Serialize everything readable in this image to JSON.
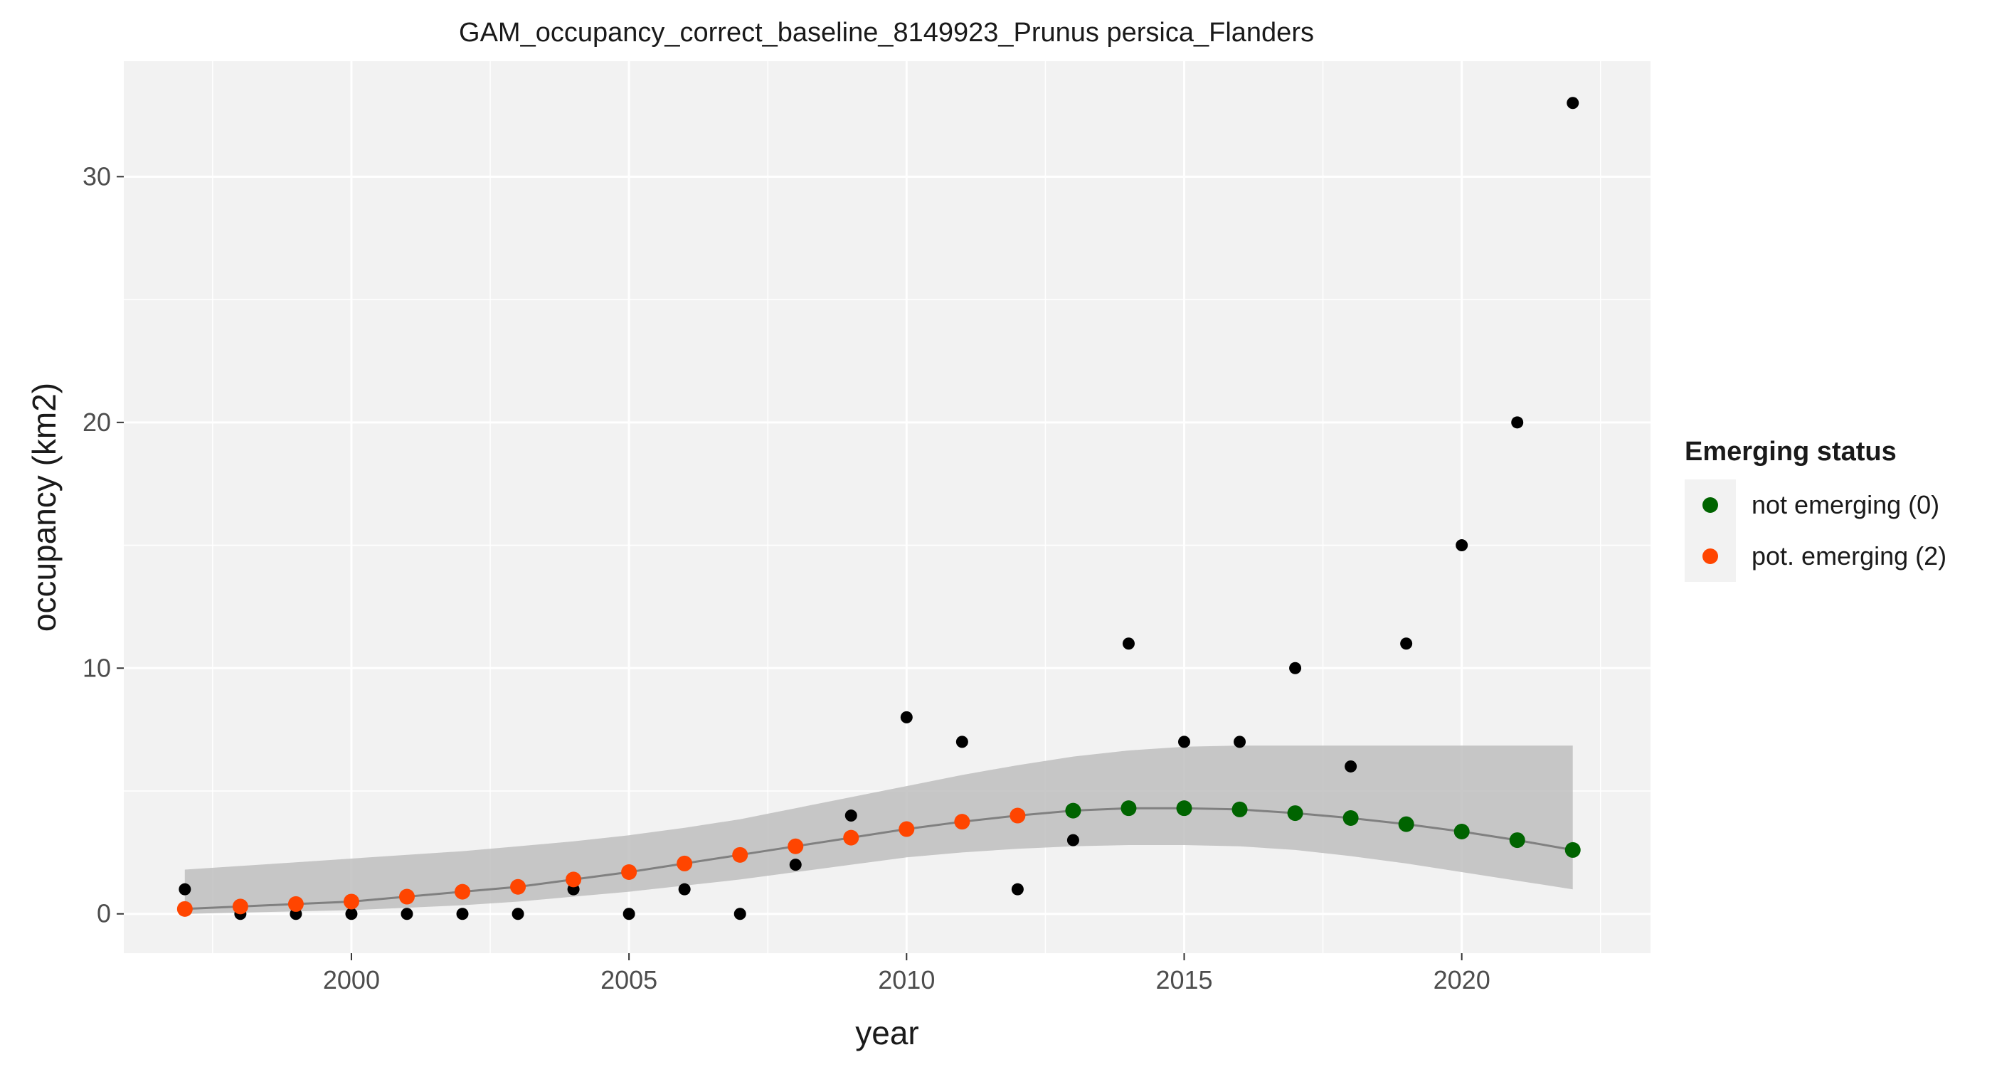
{
  "chart_data": {
    "type": "scatter",
    "title": "GAM_occupancy_correct_baseline_8149923_Prunus persica_Flanders",
    "xlabel": "year",
    "ylabel": "occupancy (km2)",
    "xlim": [
      1995.9,
      2023.4
    ],
    "ylim": [
      -1.6,
      34.7
    ],
    "x_ticks": [
      2000,
      2005,
      2010,
      2015,
      2020
    ],
    "y_ticks": [
      0,
      10,
      20,
      30
    ],
    "grid": true,
    "legend": {
      "title": "Emerging status",
      "position": "right",
      "entries": [
        {
          "label": "not emerging (0)",
          "color": "#006400"
        },
        {
          "label": "pot. emerging (2)",
          "color": "#FF4500"
        }
      ]
    },
    "colors": {
      "panel_background": "#F2F2F2",
      "grid": "#FFFFFF",
      "observed_points": "#000000",
      "fit_line": "#808080",
      "confidence_band": "#BEBEBE",
      "not_emerging": "#006400",
      "pot_emerging": "#FF4500"
    },
    "observed": {
      "x": [
        1997,
        1998,
        1999,
        2000,
        2001,
        2002,
        2003,
        2004,
        2005,
        2006,
        2007,
        2008,
        2009,
        2010,
        2011,
        2012,
        2013,
        2014,
        2015,
        2016,
        2017,
        2018,
        2019,
        2020,
        2021,
        2022
      ],
      "y": [
        1,
        0,
        0,
        0,
        0,
        0,
        0,
        1,
        0,
        1,
        0,
        2,
        4,
        8,
        7,
        1,
        3,
        11,
        7,
        7,
        10,
        6,
        11,
        15,
        20,
        33
      ]
    },
    "fit": {
      "x": [
        1997,
        1998,
        1999,
        2000,
        2001,
        2002,
        2003,
        2004,
        2005,
        2006,
        2007,
        2008,
        2009,
        2010,
        2011,
        2012,
        2013,
        2014,
        2015,
        2016,
        2017,
        2018,
        2019,
        2020,
        2021,
        2022
      ],
      "y": [
        0.2,
        0.3,
        0.4,
        0.5,
        0.7,
        0.9,
        1.1,
        1.4,
        1.7,
        2.05,
        2.4,
        2.75,
        3.1,
        3.45,
        3.75,
        4.0,
        4.2,
        4.3,
        4.3,
        4.25,
        4.1,
        3.9,
        3.65,
        3.35,
        3.0,
        2.6
      ],
      "lower": [
        0.0,
        0.05,
        0.1,
        0.15,
        0.25,
        0.35,
        0.5,
        0.7,
        0.9,
        1.15,
        1.4,
        1.7,
        2.0,
        2.3,
        2.5,
        2.65,
        2.75,
        2.8,
        2.8,
        2.75,
        2.6,
        2.35,
        2.05,
        1.7,
        1.35,
        1.0
      ],
      "upper": [
        1.8,
        1.95,
        2.1,
        2.25,
        2.4,
        2.55,
        2.75,
        2.95,
        3.2,
        3.5,
        3.85,
        4.3,
        4.75,
        5.2,
        5.65,
        6.05,
        6.4,
        6.65,
        6.8,
        6.85,
        6.85,
        6.85,
        6.85,
        6.85,
        6.85,
        6.85
      ],
      "status": [
        2,
        2,
        2,
        2,
        2,
        2,
        2,
        2,
        2,
        2,
        2,
        2,
        2,
        2,
        2,
        2,
        0,
        0,
        0,
        0,
        0,
        0,
        0,
        0,
        0,
        0
      ]
    }
  }
}
